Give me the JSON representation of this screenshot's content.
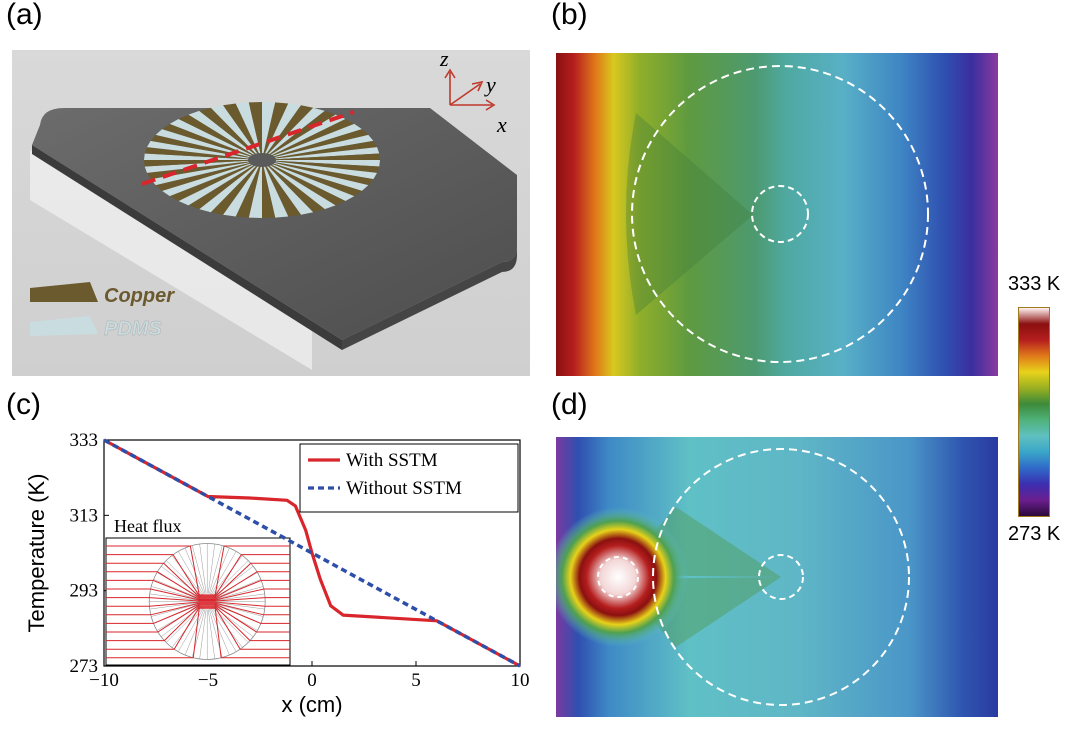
{
  "panels": {
    "a": {
      "label": "(a)",
      "legend": {
        "copper": "Copper",
        "pdms": "PDMS"
      },
      "axes": {
        "x": "x",
        "y": "y",
        "z": "z"
      },
      "colors": {
        "copper": "#6b5a2e",
        "pdms": "#c9dde0",
        "plate": "#5e5e5e",
        "cut": "#d8262c"
      }
    },
    "b": {
      "label": "(b)"
    },
    "c": {
      "label": "(c)"
    },
    "d": {
      "label": "(d)"
    }
  },
  "colorbar": {
    "max_label": "333 K",
    "min_label": "273 K",
    "stops": [
      "#2a0a3a",
      "#6b1f8f",
      "#3b2fb0",
      "#2f6ac9",
      "#3aa6c8",
      "#5fc0c0",
      "#4fb27a",
      "#3d8a3a",
      "#9ab020",
      "#e8d21a",
      "#e07a1a",
      "#b51e1e",
      "#8b0f0f",
      "#fff2f2"
    ]
  },
  "chart_data": {
    "type": "line",
    "title": "",
    "xlabel": "x (cm)",
    "ylabel": "Temperature (K)",
    "xlim": [
      -10,
      10
    ],
    "ylim": [
      273,
      333
    ],
    "xticks": [
      -10,
      -5,
      0,
      5,
      10
    ],
    "yticks": [
      273,
      293,
      313,
      333
    ],
    "legend_position": "top-right",
    "inset_title": "Heat flux",
    "series": [
      {
        "name": "With SSTM",
        "color": "#d8262c",
        "style": "solid",
        "x": [
          -10,
          -5,
          -3,
          -1.2,
          -0.8,
          -0.3,
          0,
          0.4,
          0.9,
          1.5,
          3,
          6,
          10
        ],
        "y": [
          333,
          318,
          317.6,
          317,
          315.5,
          309,
          303,
          296,
          289,
          286.5,
          286,
          285,
          273
        ]
      },
      {
        "name": "Without SSTM",
        "color": "#2e4fa8",
        "style": "dashed",
        "x": [
          -10,
          10
        ],
        "y": [
          333,
          273
        ]
      }
    ]
  }
}
